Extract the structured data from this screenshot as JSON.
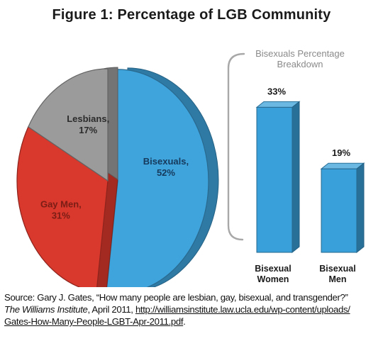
{
  "title": "Figure 1: Percentage of LGB Community",
  "breakdown_title": [
    "Bisexuals Percentage",
    "Breakdown"
  ],
  "colors": {
    "bisexuals": "#3fa3dc",
    "gay_men": "#d9382c",
    "lesbians": "#9b9b9b",
    "bars": "#3aa0da",
    "bracket": "#a8a8a8"
  },
  "chart_data": [
    {
      "type": "pie",
      "labels": [
        "Bisexuals",
        "Gay Men",
        "Lesbians"
      ],
      "values": [
        52,
        31,
        17
      ],
      "value_labels": [
        "52%",
        "31%",
        "17%"
      ],
      "exploded": "Bisexuals",
      "legend": "none"
    },
    {
      "type": "bar",
      "categories": [
        [
          "Bisexual",
          "Women"
        ],
        [
          "Bisexual",
          "Men"
        ]
      ],
      "values": [
        33,
        19
      ],
      "value_labels": [
        "33%",
        "19%"
      ],
      "grid": false
    }
  ],
  "source": {
    "prefix": "Source: Gary J. Gates, “How many people are lesbian, gay, bisexual, and transgender?”",
    "publisher": "The Williams Institute",
    "date_text": ", April 2011, ",
    "url_line1": "http://williamsinstitute.law.ucla.edu/wp-content/uploads/",
    "url_line2": "Gates-How-Many-People-LGBT-Apr-2011.pdf",
    "end": "."
  }
}
